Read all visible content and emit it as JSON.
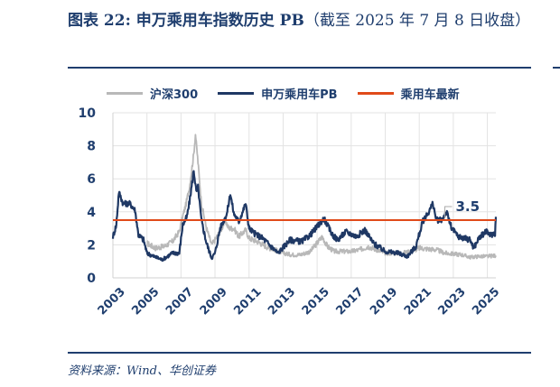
{
  "title": {
    "main": "图表 22:  申万乘用车指数历史 PB",
    "sub": "（截至 2025 年 7 月 8 日收盘）"
  },
  "source": "资料来源：Wind、华创证券",
  "chart_data": {
    "type": "line",
    "title": "申万乘用车指数历史 PB",
    "ylim": [
      0,
      10
    ],
    "xlim": [
      2003,
      2025.5
    ],
    "yticks": [
      "0",
      "2",
      "4",
      "6",
      "8",
      "10"
    ],
    "xticks": [
      "2003",
      "2005",
      "2007",
      "2009",
      "2011",
      "2013",
      "2015",
      "2017",
      "2019",
      "2021",
      "2023",
      "2025"
    ],
    "legend_position": "top",
    "annotation": "3.5",
    "colors": {
      "csi300": "#b8b8b8",
      "pb": "#1f3864",
      "latest": "#e04a1a"
    },
    "series": [
      {
        "name": "沪深300",
        "key": "csi300",
        "points": [
          [
            2005.0,
            2.1
          ],
          [
            2005.5,
            1.8
          ],
          [
            2006.0,
            1.9
          ],
          [
            2006.5,
            2.2
          ],
          [
            2006.9,
            2.8
          ],
          [
            2007.1,
            3.7
          ],
          [
            2007.3,
            4.5
          ],
          [
            2007.5,
            5.5
          ],
          [
            2007.75,
            7.5
          ],
          [
            2007.85,
            8.7
          ],
          [
            2008.0,
            7.0
          ],
          [
            2008.2,
            4.5
          ],
          [
            2008.5,
            3.0
          ],
          [
            2008.8,
            2.0
          ],
          [
            2009.0,
            2.3
          ],
          [
            2009.4,
            3.0
          ],
          [
            2009.6,
            3.5
          ],
          [
            2009.8,
            3.0
          ],
          [
            2010.1,
            3.0
          ],
          [
            2010.4,
            2.5
          ],
          [
            2010.8,
            2.9
          ],
          [
            2011.0,
            2.4
          ],
          [
            2011.5,
            2.2
          ],
          [
            2012.0,
            1.9
          ],
          [
            2012.5,
            1.7
          ],
          [
            2013.0,
            1.5
          ],
          [
            2013.5,
            1.4
          ],
          [
            2014.0,
            1.4
          ],
          [
            2014.6,
            1.6
          ],
          [
            2015.3,
            2.5
          ],
          [
            2015.6,
            1.9
          ],
          [
            2016.0,
            1.6
          ],
          [
            2016.5,
            1.6
          ],
          [
            2017.0,
            1.6
          ],
          [
            2017.5,
            1.7
          ],
          [
            2018.0,
            1.9
          ],
          [
            2018.5,
            1.7
          ],
          [
            2019.0,
            1.5
          ],
          [
            2019.5,
            1.5
          ],
          [
            2020.0,
            1.5
          ],
          [
            2020.5,
            1.6
          ],
          [
            2021.0,
            1.8
          ],
          [
            2021.5,
            1.75
          ],
          [
            2022.0,
            1.7
          ],
          [
            2022.5,
            1.5
          ],
          [
            2023.0,
            1.45
          ],
          [
            2023.5,
            1.4
          ],
          [
            2024.0,
            1.25
          ],
          [
            2024.5,
            1.3
          ],
          [
            2025.0,
            1.3
          ],
          [
            2025.5,
            1.35
          ]
        ]
      },
      {
        "name": "申万乘用车PB",
        "key": "pb",
        "points": [
          [
            2003.0,
            2.5
          ],
          [
            2003.2,
            3.2
          ],
          [
            2003.35,
            5.2
          ],
          [
            2003.6,
            4.5
          ],
          [
            2004.0,
            4.5
          ],
          [
            2004.3,
            4.1
          ],
          [
            2004.5,
            2.6
          ],
          [
            2004.8,
            2.3
          ],
          [
            2005.0,
            1.5
          ],
          [
            2005.4,
            1.3
          ],
          [
            2005.9,
            1.1
          ],
          [
            2006.5,
            1.5
          ],
          [
            2006.9,
            1.5
          ],
          [
            2007.1,
            3.2
          ],
          [
            2007.35,
            3.7
          ],
          [
            2007.5,
            4.6
          ],
          [
            2007.75,
            6.5
          ],
          [
            2007.9,
            5.2
          ],
          [
            2008.0,
            5.5
          ],
          [
            2008.2,
            3.5
          ],
          [
            2008.5,
            2.1
          ],
          [
            2008.8,
            1.2
          ],
          [
            2009.0,
            1.5
          ],
          [
            2009.3,
            3.0
          ],
          [
            2009.7,
            3.9
          ],
          [
            2009.9,
            5.1
          ],
          [
            2010.1,
            3.9
          ],
          [
            2010.4,
            3.4
          ],
          [
            2010.8,
            4.5
          ],
          [
            2011.0,
            3.0
          ],
          [
            2011.3,
            2.7
          ],
          [
            2011.8,
            2.4
          ],
          [
            2012.3,
            1.9
          ],
          [
            2012.7,
            1.5
          ],
          [
            2013.4,
            2.3
          ],
          [
            2014.1,
            2.2
          ],
          [
            2014.6,
            2.6
          ],
          [
            2015.4,
            3.6
          ],
          [
            2015.9,
            2.6
          ],
          [
            2016.2,
            2.3
          ],
          [
            2016.7,
            2.8
          ],
          [
            2017.3,
            2.5
          ],
          [
            2017.8,
            2.9
          ],
          [
            2018.3,
            2.1
          ],
          [
            2019.0,
            1.6
          ],
          [
            2019.75,
            1.5
          ],
          [
            2020.3,
            1.3
          ],
          [
            2020.8,
            1.9
          ],
          [
            2021.2,
            3.4
          ],
          [
            2021.5,
            3.9
          ],
          [
            2021.8,
            4.5
          ],
          [
            2022.0,
            3.5
          ],
          [
            2022.3,
            3.5
          ],
          [
            2022.6,
            4.0
          ],
          [
            2022.9,
            3.0
          ],
          [
            2023.3,
            2.5
          ],
          [
            2024.0,
            2.3
          ],
          [
            2024.2,
            1.8
          ],
          [
            2024.5,
            2.4
          ],
          [
            2024.9,
            2.8
          ],
          [
            2025.2,
            2.6
          ],
          [
            2025.45,
            2.7
          ],
          [
            2025.5,
            3.7
          ]
        ]
      },
      {
        "name": "乘用车最新",
        "key": "latest",
        "value": 3.5
      }
    ]
  }
}
